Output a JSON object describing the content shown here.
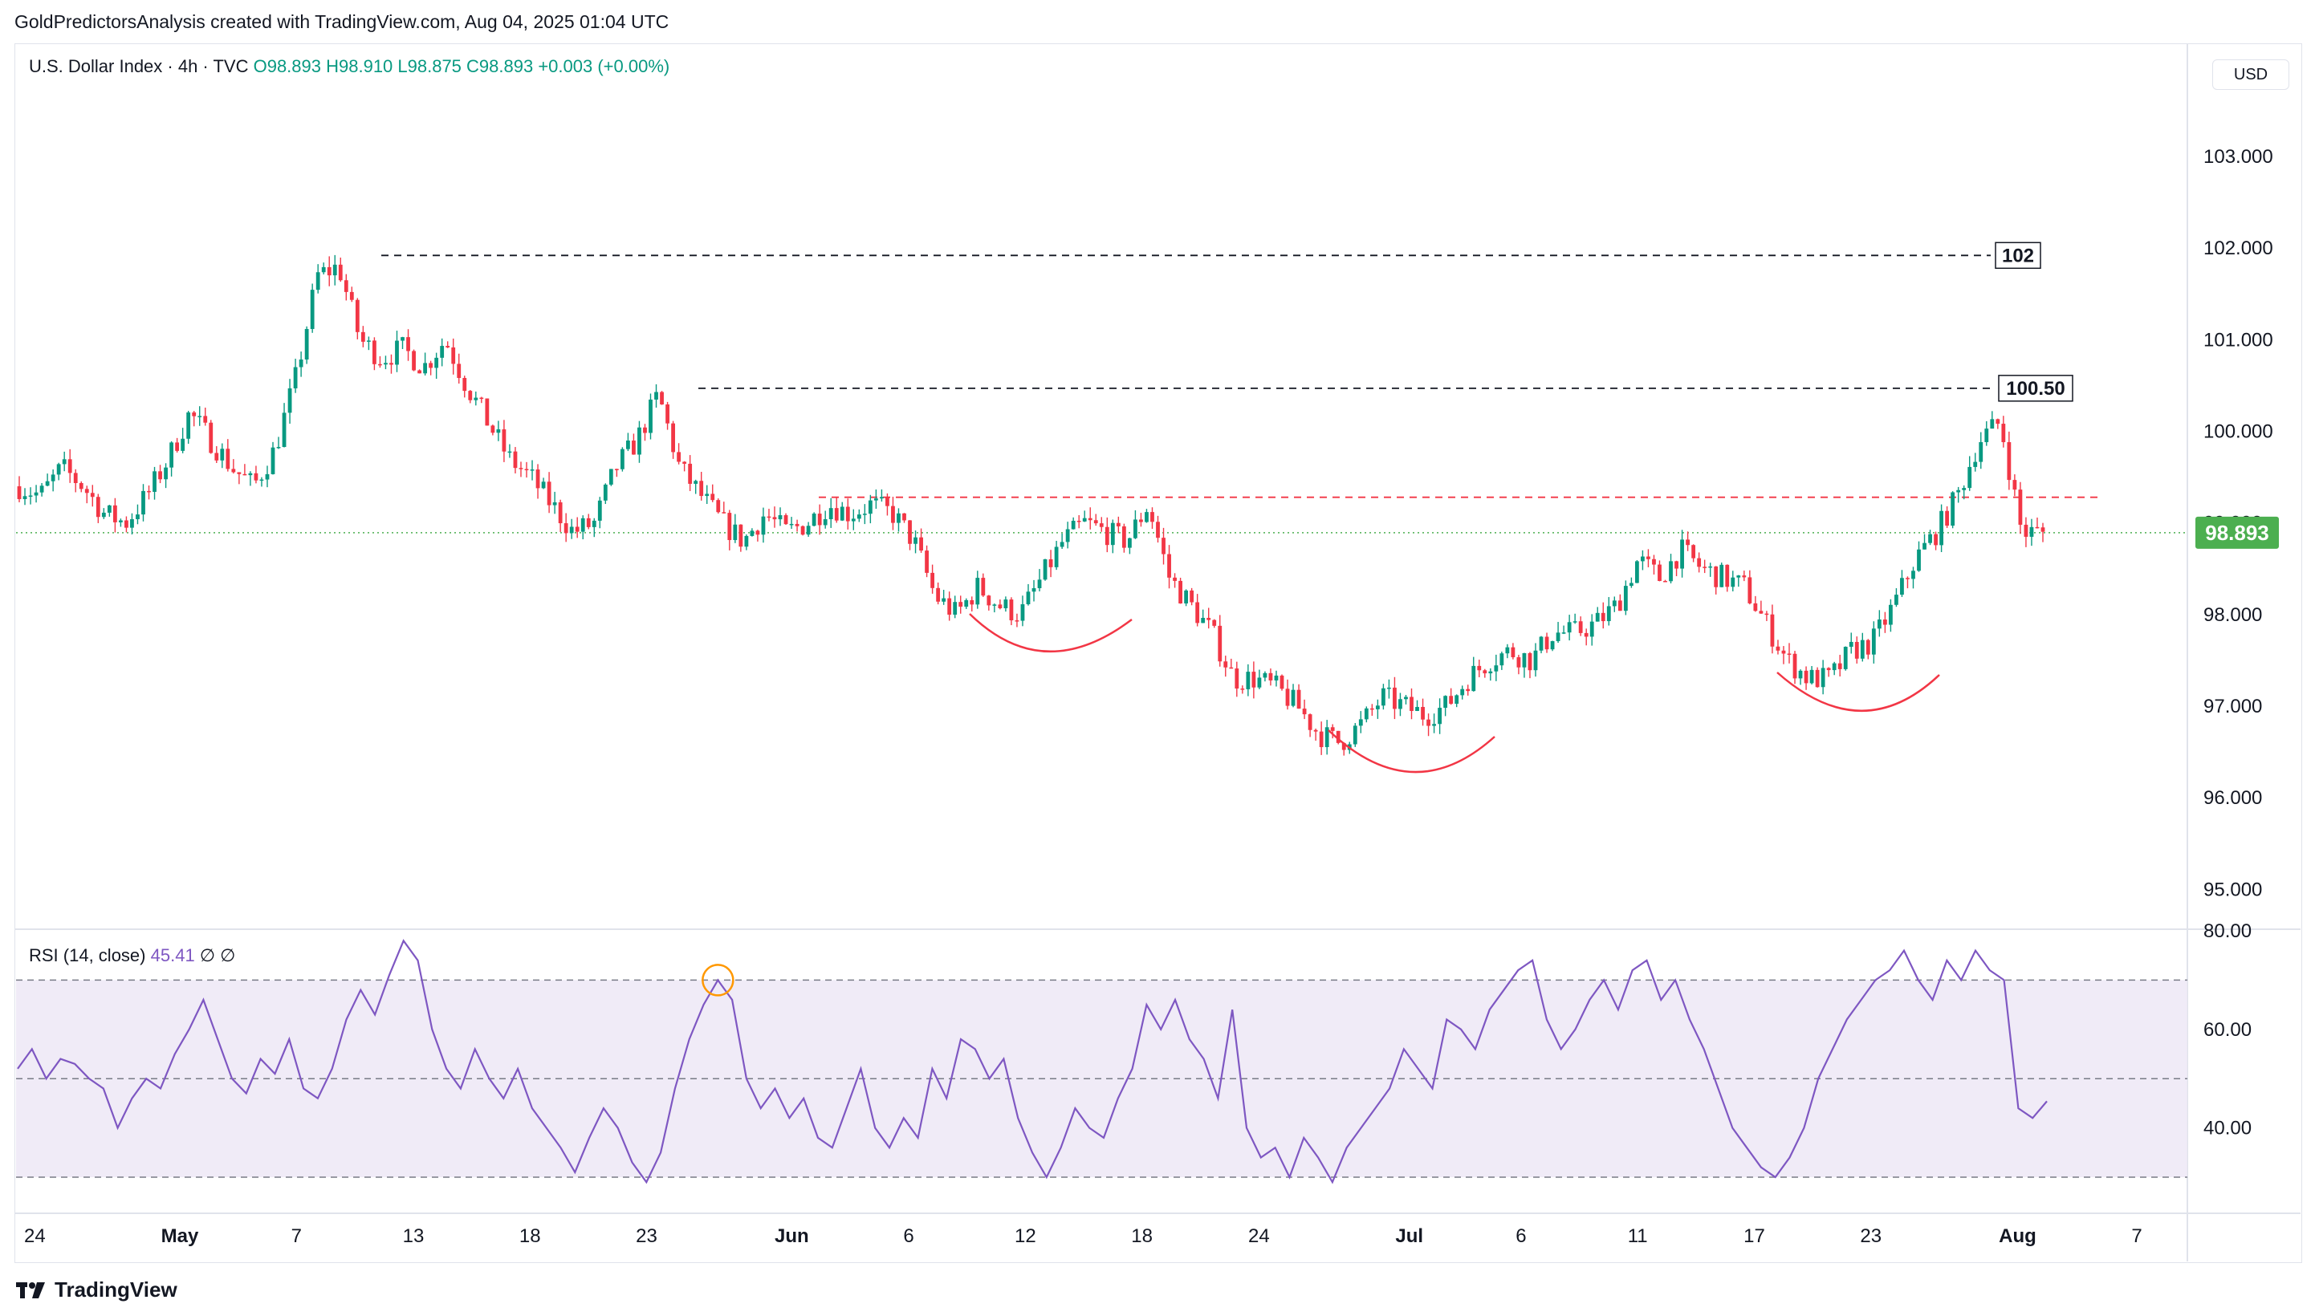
{
  "header": {
    "attribution": "GoldPredictorsAnalysis created with TradingView.com, Aug 04, 2025 01:04 UTC"
  },
  "legend": {
    "symbol": "U.S. Dollar Index · 4h · TVC",
    "ohlc": "O98.893  H98.910  L98.875  C98.893  +0.003 (+0.00%)"
  },
  "rsi_legend": {
    "title": "RSI (14, close)",
    "value": "45.41",
    "extra": "∅  ∅"
  },
  "currency_label": "USD",
  "last_price_tag": "98.893",
  "level_labels": [
    "102",
    "100.50"
  ],
  "footer": {
    "logo_text": "TradingView"
  },
  "colors": {
    "up": "#089981",
    "down": "#f23645",
    "rsi_line": "#7e57c2",
    "rsi_band": "#ede7f6",
    "last_price": "#4caf50",
    "resistance_dash": "#f23645",
    "level_dash": "#131722",
    "cup_arc": "#f23645",
    "rsi_marker": "#ff9800"
  },
  "chart_data": [
    {
      "type": "candlestick",
      "title": "U.S. Dollar Index · 4h · TVC",
      "x_ticks": [
        "24",
        "May",
        "7",
        "13",
        "18",
        "23",
        "Jun",
        "6",
        "12",
        "18",
        "24",
        "Jul",
        "6",
        "11",
        "17",
        "23",
        "Aug",
        "7"
      ],
      "y_ticks": [
        "95.000",
        "96.000",
        "97.000",
        "98.000",
        "99.000",
        "100.000",
        "101.000",
        "102.000",
        "103.000"
      ],
      "ylim": [
        94.6,
        104.2
      ],
      "last_price": 98.893,
      "horizontal_levels": [
        {
          "label": "102",
          "value": 101.92,
          "style": "dashed-black"
        },
        {
          "label": "100.50",
          "value": 100.47,
          "style": "dashed-black"
        },
        {
          "label": "",
          "value": 99.28,
          "style": "dashed-red"
        },
        {
          "label": "",
          "value": 98.893,
          "style": "dotted-green"
        }
      ],
      "close_path": [
        [
          "Apr 24",
          99.4
        ],
        [
          "Apr 26",
          99.3
        ],
        [
          "Apr 28",
          99.6
        ],
        [
          "Apr 30",
          99.4
        ],
        [
          "May 1",
          99.1
        ],
        [
          "May 2",
          99.0
        ],
        [
          "May 3",
          99.3
        ],
        [
          "May 5",
          99.7
        ],
        [
          "May 6",
          100.2
        ],
        [
          "May 7",
          99.9
        ],
        [
          "May 8",
          99.6
        ],
        [
          "May 9",
          99.4
        ],
        [
          "May 10",
          99.8
        ],
        [
          "May 11",
          100.6
        ],
        [
          "May 12",
          101.7
        ],
        [
          "May 13",
          101.8
        ],
        [
          "May 14",
          101.0
        ],
        [
          "May 15",
          100.8
        ],
        [
          "May 16",
          100.9
        ],
        [
          "May 17",
          100.7
        ],
        [
          "May 18",
          101.0
        ],
        [
          "May 19",
          100.5
        ],
        [
          "May 20",
          100.1
        ],
        [
          "May 21",
          99.7
        ],
        [
          "May 22",
          99.5
        ],
        [
          "May 23",
          99.2
        ],
        [
          "May 24",
          98.9
        ],
        [
          "May 25",
          99.0
        ],
        [
          "May 27",
          99.6
        ],
        [
          "May 28",
          99.9
        ],
        [
          "May 29",
          100.4
        ],
        [
          "May 30",
          99.6
        ],
        [
          "Jun 1",
          99.3
        ],
        [
          "Jun 2",
          99.0
        ],
        [
          "Jun 3",
          98.8
        ],
        [
          "Jun 4",
          99.1
        ],
        [
          "Jun 5",
          98.9
        ],
        [
          "Jun 6",
          99.0
        ],
        [
          "Jun 7",
          99.2
        ],
        [
          "Jun 8",
          99.1
        ],
        [
          "Jun 9",
          99.2
        ],
        [
          "Jun 10",
          99.1
        ],
        [
          "Jun 11",
          98.8
        ],
        [
          "Jun 12",
          98.2
        ],
        [
          "Jun 13",
          98.0
        ],
        [
          "Jun 14",
          98.3
        ],
        [
          "Jun 15",
          98.1
        ],
        [
          "Jun 16",
          98.0
        ],
        [
          "Jun 17",
          98.4
        ],
        [
          "Jun 18",
          98.8
        ],
        [
          "Jun 19",
          99.0
        ],
        [
          "Jun 20",
          98.9
        ],
        [
          "Jun 21",
          98.8
        ],
        [
          "Jun 22",
          99.2
        ],
        [
          "Jun 23",
          98.4
        ],
        [
          "Jun 24",
          98.1
        ],
        [
          "Jun 25",
          97.8
        ],
        [
          "Jun 26",
          97.3
        ],
        [
          "Jun 27",
          97.3
        ],
        [
          "Jun 28",
          97.2
        ],
        [
          "Jun 29",
          97.0
        ],
        [
          "Jun 30",
          96.7
        ],
        [
          "Jul 1",
          96.6
        ],
        [
          "Jul 2",
          96.8
        ],
        [
          "Jul 3",
          97.1
        ],
        [
          "Jul 4",
          97.0
        ],
        [
          "Jul 5",
          96.9
        ],
        [
          "Jul 6",
          97.0
        ],
        [
          "Jul 7",
          97.3
        ],
        [
          "Jul 8",
          97.5
        ],
        [
          "Jul 9",
          97.6
        ],
        [
          "Jul 10",
          97.5
        ],
        [
          "Jul 11",
          97.8
        ],
        [
          "Jul 12",
          97.8
        ],
        [
          "Jul 13",
          97.9
        ],
        [
          "Jul 14",
          98.1
        ],
        [
          "Jul 15",
          98.6
        ],
        [
          "Jul 16",
          98.4
        ],
        [
          "Jul 17",
          98.7
        ],
        [
          "Jul 18",
          98.5
        ],
        [
          "Jul 19",
          98.4
        ],
        [
          "Jul 20",
          98.3
        ],
        [
          "Jul 21",
          97.9
        ],
        [
          "Jul 22",
          97.5
        ],
        [
          "Jul 23",
          97.3
        ],
        [
          "Jul 24",
          97.3
        ],
        [
          "Jul 25",
          97.6
        ],
        [
          "Jul 26",
          97.7
        ],
        [
          "Jul 27",
          98.1
        ],
        [
          "Jul 28",
          98.6
        ],
        [
          "Jul 29",
          98.9
        ],
        [
          "Jul 30",
          99.3
        ],
        [
          "Jul 31",
          99.9
        ],
        [
          "Aug 1",
          100.1
        ],
        [
          "Aug 2",
          98.9
        ],
        [
          "Aug 3",
          98.893
        ]
      ]
    },
    {
      "type": "line",
      "title": "RSI (14, close)",
      "y_ticks": [
        "40.00",
        "60.00",
        "80.00"
      ],
      "ylim": [
        23,
        80
      ],
      "bands": [
        30,
        50,
        70
      ],
      "last_value": 45.41,
      "series": [
        {
          "values": [
            52,
            56,
            50,
            54,
            53,
            50,
            48,
            40,
            46,
            50,
            48,
            55,
            60,
            66,
            58,
            50,
            47,
            54,
            51,
            58,
            48,
            46,
            52,
            62,
            68,
            63,
            71,
            78,
            74,
            60,
            52,
            48,
            56,
            50,
            46,
            52,
            44,
            40,
            36,
            31,
            38,
            44,
            40,
            33,
            29,
            35,
            48,
            58,
            65,
            70,
            66,
            50,
            44,
            48,
            42,
            46,
            38,
            36,
            44,
            52,
            40,
            36,
            42,
            38,
            52,
            46,
            58,
            56,
            50,
            54,
            42,
            35,
            30,
            36,
            44,
            40,
            38,
            46,
            52,
            65,
            60,
            66,
            58,
            54,
            46,
            64,
            40,
            34,
            36,
            30,
            38,
            34,
            29,
            36,
            40,
            44,
            48,
            56,
            52,
            48,
            62,
            60,
            56,
            64,
            68,
            72,
            74,
            62,
            56,
            60,
            66,
            70,
            64,
            72,
            74,
            66,
            70,
            62,
            56,
            48,
            40,
            36,
            32,
            30,
            34,
            40,
            50,
            56,
            62,
            66,
            70,
            72,
            76,
            70,
            66,
            74,
            70,
            76,
            72,
            70,
            44,
            42,
            45.41
          ]
        }
      ],
      "marker": {
        "label": "",
        "value": 70
      }
    }
  ]
}
